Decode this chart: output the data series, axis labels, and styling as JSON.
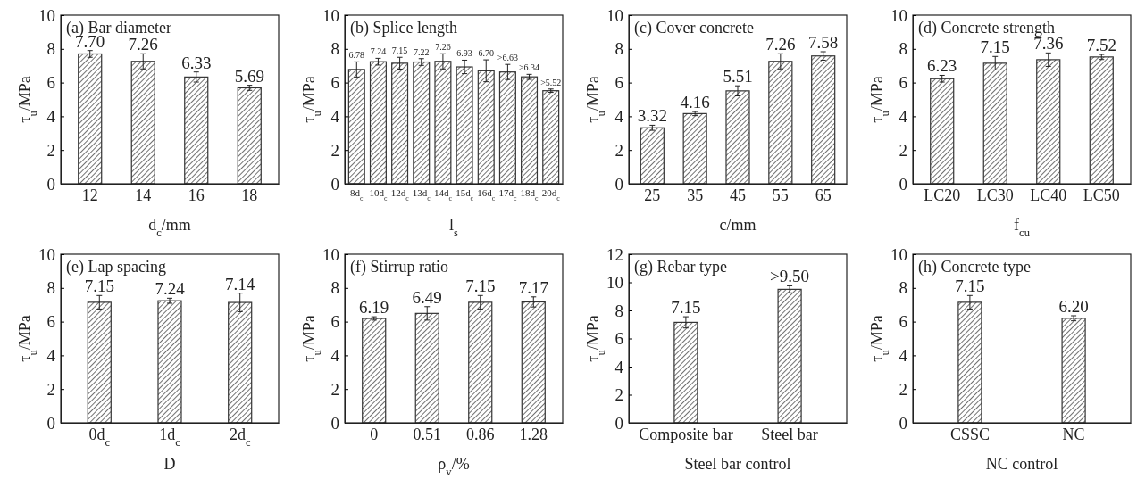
{
  "chart_data": [
    {
      "type": "bar",
      "title": "(a) Bar diameter",
      "xlabel": "d$_{c}$/mm",
      "ylabel": "τ$_{u}$/MPa",
      "categories": [
        "12",
        "14",
        "16",
        "18"
      ],
      "values": [
        7.7,
        7.26,
        6.33,
        5.69
      ],
      "errors": [
        0.2,
        0.45,
        0.3,
        0.15
      ],
      "value_labels": [
        "7.70",
        "7.26",
        "6.33",
        "5.69"
      ],
      "color": "#333333",
      "ylim": [
        0,
        10
      ],
      "yticks": [
        0,
        2,
        4,
        6,
        8,
        10
      ]
    },
    {
      "type": "bar",
      "title": "(b) Splice length",
      "xlabel": "l$_{s}$",
      "ylabel": "τ$_{u}$/MPa",
      "categories": [
        "8d$_{c}$",
        "10d$_{c}$",
        "12d$_{c}$",
        "13d$_{c}$",
        "14d$_{c}$",
        "15d$_{c}$",
        "16d$_{c}$",
        "17d$_{c}$",
        "18d$_{c}$",
        "20d$_{c}$"
      ],
      "values": [
        6.78,
        7.24,
        7.15,
        7.22,
        7.26,
        6.93,
        6.7,
        6.63,
        6.34,
        5.52
      ],
      "errors": [
        0.45,
        0.2,
        0.35,
        0.2,
        0.45,
        0.4,
        0.65,
        0.45,
        0.15,
        0.1
      ],
      "value_labels": [
        "6.78",
        "7.24",
        "7.15",
        "7.22",
        "7.26",
        "6.93",
        "6.70",
        ">6.63",
        ">6.34",
        ">5.52"
      ],
      "color": "#333333",
      "ylim": [
        0,
        10
      ],
      "yticks": [
        0,
        2,
        4,
        6,
        8,
        10
      ]
    },
    {
      "type": "bar",
      "title": "(c) Cover concrete",
      "xlabel": "c/mm",
      "ylabel": "τ$_{u}$/MPa",
      "categories": [
        "25",
        "35",
        "45",
        "55",
        "65"
      ],
      "values": [
        3.32,
        4.16,
        5.51,
        7.26,
        7.58
      ],
      "errors": [
        0.15,
        0.12,
        0.3,
        0.45,
        0.25
      ],
      "value_labels": [
        "3.32",
        "4.16",
        "5.51",
        "7.26",
        "7.58"
      ],
      "color": "#333333",
      "ylim": [
        0,
        10
      ],
      "yticks": [
        0,
        2,
        4,
        6,
        8,
        10
      ]
    },
    {
      "type": "bar",
      "title": "(d) Concrete strength",
      "xlabel": "f$_{cu}$",
      "ylabel": "τ$_{u}$/MPa",
      "categories": [
        "LC20",
        "LC30",
        "LC40",
        "LC50"
      ],
      "values": [
        6.23,
        7.15,
        7.36,
        7.52
      ],
      "errors": [
        0.2,
        0.4,
        0.4,
        0.15
      ],
      "value_labels": [
        "6.23",
        "7.15",
        "7.36",
        "7.52"
      ],
      "color": "#333333",
      "ylim": [
        0,
        10
      ],
      "yticks": [
        0,
        2,
        4,
        6,
        8,
        10
      ]
    },
    {
      "type": "bar",
      "title": "(e) Lap spacing",
      "xlabel": "D",
      "ylabel": "τ$_{u}$/MPa",
      "categories": [
        "0d$_{c}$",
        "1d$_{c}$",
        "2d$_{c}$"
      ],
      "values": [
        7.15,
        7.24,
        7.14
      ],
      "errors": [
        0.4,
        0.15,
        0.55
      ],
      "value_labels": [
        "7.15",
        "7.24",
        "7.14"
      ],
      "color": "#333333",
      "ylim": [
        0,
        10
      ],
      "yticks": [
        0,
        2,
        4,
        6,
        8,
        10
      ]
    },
    {
      "type": "bar",
      "title": "(f) Stirrup ratio",
      "xlabel": "ρ$_{v}$/%",
      "ylabel": "τ$_{u}$/MPa",
      "categories": [
        "0",
        "0.51",
        "0.86",
        "1.28"
      ],
      "values": [
        6.19,
        6.49,
        7.15,
        7.17
      ],
      "errors": [
        0.1,
        0.4,
        0.4,
        0.3
      ],
      "value_labels": [
        "6.19",
        "6.49",
        "7.15",
        "7.17"
      ],
      "color": "#333333",
      "ylim": [
        0,
        10
      ],
      "yticks": [
        0,
        2,
        4,
        6,
        8,
        10
      ]
    },
    {
      "type": "bar",
      "title": "(g) Rebar type",
      "xlabel": "Steel bar control",
      "ylabel": "τ$_{u}$/MPa",
      "categories": [
        "Composite bar",
        "Steel bar"
      ],
      "values": [
        7.15,
        9.5
      ],
      "errors": [
        0.4,
        0.25
      ],
      "value_labels": [
        "7.15",
        ">9.50"
      ],
      "color": "#333333",
      "ylim": [
        0,
        12
      ],
      "yticks": [
        0,
        2,
        4,
        6,
        8,
        10,
        12
      ]
    },
    {
      "type": "bar",
      "title": "(h) Concrete type",
      "xlabel": "NC control",
      "ylabel": "τ$_{u}$/MPa",
      "categories": [
        "CSSC",
        "NC"
      ],
      "values": [
        7.15,
        6.2
      ],
      "errors": [
        0.4,
        0.15
      ],
      "value_labels": [
        "7.15",
        "6.20"
      ],
      "color": "#333333",
      "ylim": [
        0,
        10
      ],
      "yticks": [
        0,
        2,
        4,
        6,
        8,
        10
      ]
    }
  ]
}
